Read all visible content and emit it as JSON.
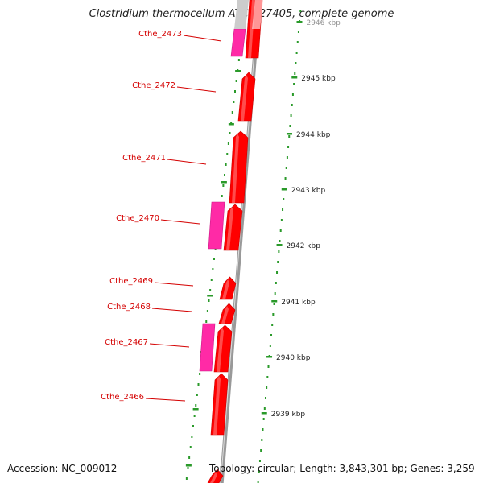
{
  "title": "Clostridium thermocellum ATCC 27405, complete genome",
  "footer": {
    "accession": "Accession: NC_009012",
    "topology": "Topology: circular; Length: 3,843,301 bp; Genes: 3,259"
  },
  "colors": {
    "cds": "#ff0000",
    "cds_alt": "#ff2aa6",
    "backbone": "#999999",
    "ticks": "#2a9a2a",
    "label": "#d40000"
  },
  "genes": [
    {
      "name": "Cthe_2473",
      "strand": "forward"
    },
    {
      "name": "Cthe_2472",
      "strand": "forward"
    },
    {
      "name": "Cthe_2471",
      "strand": "forward"
    },
    {
      "name": "Cthe_2470",
      "strand": "forward"
    },
    {
      "name": "Cthe_2469",
      "strand": "forward"
    },
    {
      "name": "Cthe_2468",
      "strand": "forward"
    },
    {
      "name": "Cthe_2467",
      "strand": "forward"
    },
    {
      "name": "Cthe_2466",
      "strand": "forward"
    }
  ],
  "kbp_ticks": [
    {
      "label": "2946 kbp"
    },
    {
      "label": "2945 kbp"
    },
    {
      "label": "2944 kbp"
    },
    {
      "label": "2943 kbp"
    },
    {
      "label": "2942 kbp"
    },
    {
      "label": "2941 kbp"
    },
    {
      "label": "2940 kbp"
    },
    {
      "label": "2939 kbp"
    }
  ]
}
